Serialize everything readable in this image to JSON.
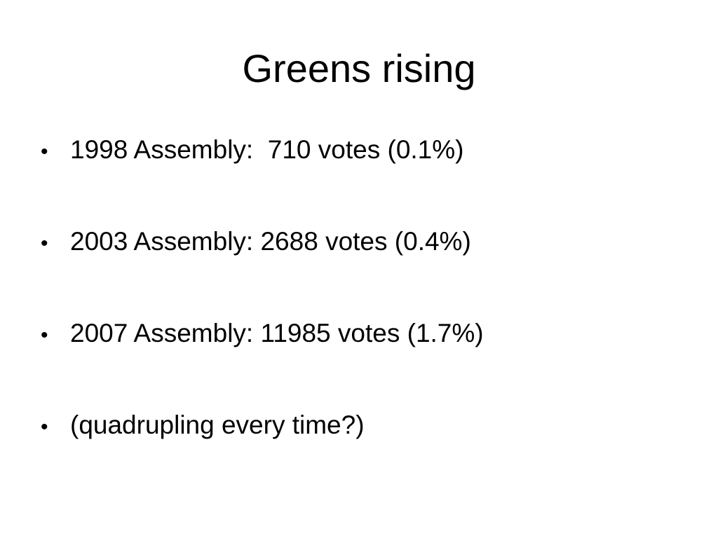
{
  "slide": {
    "title": "Greens rising",
    "bullet_glyph": "•",
    "bullets": [
      "1998 Assembly:  710 votes (0.1%)",
      "2003 Assembly: 2688 votes (0.4%)",
      "2007 Assembly: 11985 votes (1.7%)",
      "(quadrupling every time?)"
    ]
  },
  "colors": {
    "background": "#ffffff",
    "text": "#000000"
  }
}
